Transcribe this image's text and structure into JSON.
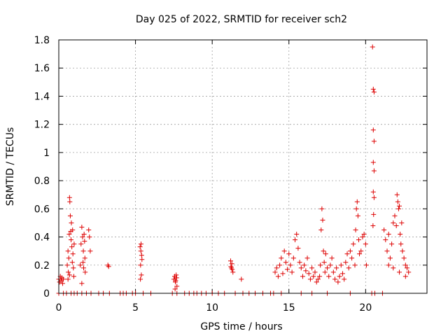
{
  "chart_data": {
    "type": "scatter",
    "title": "Day 025 of 2022, SRMTID for receiver sch2",
    "xlabel": "GPS time / hours",
    "ylabel": "SRMTID / TECUs",
    "xlim": [
      0,
      24
    ],
    "ylim": [
      0,
      1.8
    ],
    "xticks": [
      0,
      5,
      10,
      15,
      20
    ],
    "yticks": [
      0,
      0.2,
      0.4,
      0.6,
      0.8,
      1,
      1.2,
      1.4,
      1.6,
      1.8
    ],
    "ytick_labels": [
      "0",
      "0.2",
      "0.4",
      "0.6",
      "0.8",
      "1",
      "1.2",
      "1.4",
      "1.6",
      "1.8"
    ],
    "grid": true,
    "marker": "+",
    "marker_color": "#dd0000",
    "series": [
      {
        "name": "sch2",
        "points": [
          [
            0.0,
            0.1
          ],
          [
            0.05,
            0.08
          ],
          [
            0.1,
            0.12
          ],
          [
            0.15,
            0.09
          ],
          [
            0.2,
            0.11
          ],
          [
            0.25,
            0.07
          ],
          [
            0.3,
            0.1
          ],
          [
            0.0,
            0.0
          ],
          [
            0.3,
            0.0
          ],
          [
            0.5,
            0.0
          ],
          [
            0.55,
            0.2
          ],
          [
            0.6,
            0.3
          ],
          [
            0.62,
            0.15
          ],
          [
            0.65,
            0.25
          ],
          [
            0.68,
            0.42
          ],
          [
            0.7,
            0.68
          ],
          [
            0.72,
            0.65
          ],
          [
            0.75,
            0.55
          ],
          [
            0.78,
            0.44
          ],
          [
            0.8,
            0.38
          ],
          [
            0.82,
            0.5
          ],
          [
            0.85,
            0.33
          ],
          [
            0.88,
            0.22
          ],
          [
            0.9,
            0.45
          ],
          [
            0.92,
            0.28
          ],
          [
            0.95,
            0.18
          ],
          [
            0.98,
            0.12
          ],
          [
            1.0,
            0.35
          ],
          [
            0.6,
            0.1
          ],
          [
            0.7,
            0.13
          ],
          [
            0.8,
            0.0
          ],
          [
            1.0,
            0.0
          ],
          [
            1.2,
            0.0
          ],
          [
            1.4,
            0.2
          ],
          [
            1.45,
            0.35
          ],
          [
            1.5,
            0.47
          ],
          [
            1.55,
            0.4
          ],
          [
            1.6,
            0.3
          ],
          [
            1.62,
            0.18
          ],
          [
            1.65,
            0.42
          ],
          [
            1.7,
            0.25
          ],
          [
            1.72,
            0.15
          ],
          [
            1.5,
            0.07
          ],
          [
            1.58,
            0.22
          ],
          [
            1.68,
            0.37
          ],
          [
            1.95,
            0.45
          ],
          [
            2.0,
            0.4
          ],
          [
            2.05,
            0.3
          ],
          [
            1.5,
            0.0
          ],
          [
            1.8,
            0.0
          ],
          [
            2.1,
            0.0
          ],
          [
            3.2,
            0.2
          ],
          [
            3.25,
            0.19
          ],
          [
            2.6,
            0.0
          ],
          [
            2.9,
            0.0
          ],
          [
            3.3,
            0.0
          ],
          [
            4.0,
            0.0
          ],
          [
            4.2,
            0.0
          ],
          [
            4.4,
            0.0
          ],
          [
            4.8,
            0.0
          ],
          [
            5.0,
            0.0
          ],
          [
            5.3,
            0.33
          ],
          [
            5.35,
            0.3
          ],
          [
            5.4,
            0.27
          ],
          [
            5.33,
            0.2
          ],
          [
            5.38,
            0.13
          ],
          [
            5.32,
            0.1
          ],
          [
            5.42,
            0.24
          ],
          [
            5.36,
            0.35
          ],
          [
            5.5,
            0.0
          ],
          [
            6.0,
            0.0
          ],
          [
            7.5,
            0.1
          ],
          [
            7.55,
            0.12
          ],
          [
            7.6,
            0.08
          ],
          [
            7.65,
            0.13
          ],
          [
            7.7,
            0.05
          ],
          [
            7.58,
            0.03
          ],
          [
            7.62,
            0.09
          ],
          [
            7.68,
            0.11
          ],
          [
            7.4,
            0.0
          ],
          [
            7.7,
            0.0
          ],
          [
            8.2,
            0.0
          ],
          [
            8.5,
            0.0
          ],
          [
            8.8,
            0.0
          ],
          [
            9.0,
            0.0
          ],
          [
            9.3,
            0.0
          ],
          [
            9.6,
            0.0
          ],
          [
            10.0,
            0.0
          ],
          [
            10.4,
            0.0
          ],
          [
            10.8,
            0.0
          ],
          [
            11.2,
            0.23
          ],
          [
            11.25,
            0.18
          ],
          [
            11.3,
            0.17
          ],
          [
            11.28,
            0.21
          ],
          [
            11.35,
            0.15
          ],
          [
            11.22,
            0.19
          ],
          [
            11.9,
            0.1
          ],
          [
            11.5,
            0.0
          ],
          [
            12.0,
            0.0
          ],
          [
            12.4,
            0.0
          ],
          [
            12.8,
            0.0
          ],
          [
            13.3,
            0.0
          ],
          [
            13.8,
            0.0
          ],
          [
            14.0,
            0.0
          ],
          [
            14.1,
            0.15
          ],
          [
            14.2,
            0.18
          ],
          [
            14.3,
            0.12
          ],
          [
            14.4,
            0.2
          ],
          [
            14.5,
            0.25
          ],
          [
            14.6,
            0.14
          ],
          [
            14.7,
            0.3
          ],
          [
            14.8,
            0.22
          ],
          [
            14.9,
            0.17
          ],
          [
            15.0,
            0.28
          ],
          [
            15.1,
            0.2
          ],
          [
            15.2,
            0.15
          ],
          [
            15.3,
            0.25
          ],
          [
            15.4,
            0.38
          ],
          [
            15.5,
            0.42
          ],
          [
            15.6,
            0.32
          ],
          [
            15.7,
            0.22
          ],
          [
            15.8,
            0.18
          ],
          [
            15.9,
            0.12
          ],
          [
            16.0,
            0.2
          ],
          [
            16.1,
            0.16
          ],
          [
            16.2,
            0.25
          ],
          [
            16.3,
            0.14
          ],
          [
            16.4,
            0.1
          ],
          [
            16.5,
            0.18
          ],
          [
            16.6,
            0.12
          ],
          [
            16.7,
            0.15
          ],
          [
            16.8,
            0.08
          ],
          [
            16.9,
            0.1
          ],
          [
            17.0,
            0.12
          ],
          [
            17.05,
            0.2
          ],
          [
            17.1,
            0.45
          ],
          [
            17.15,
            0.6
          ],
          [
            17.2,
            0.52
          ],
          [
            17.25,
            0.3
          ],
          [
            17.3,
            0.22
          ],
          [
            17.35,
            0.15
          ],
          [
            17.4,
            0.28
          ],
          [
            17.5,
            0.18
          ],
          [
            17.6,
            0.12
          ],
          [
            17.7,
            0.2
          ],
          [
            17.8,
            0.25
          ],
          [
            17.9,
            0.15
          ],
          [
            18.0,
            0.1
          ],
          [
            18.1,
            0.18
          ],
          [
            18.2,
            0.08
          ],
          [
            18.3,
            0.12
          ],
          [
            18.4,
            0.2
          ],
          [
            18.5,
            0.14
          ],
          [
            18.6,
            0.1
          ],
          [
            18.7,
            0.22
          ],
          [
            18.8,
            0.28
          ],
          [
            18.9,
            0.18
          ],
          [
            19.0,
            0.3
          ],
          [
            19.1,
            0.25
          ],
          [
            19.2,
            0.35
          ],
          [
            19.3,
            0.2
          ],
          [
            19.35,
            0.45
          ],
          [
            19.4,
            0.6
          ],
          [
            19.45,
            0.65
          ],
          [
            19.5,
            0.55
          ],
          [
            19.55,
            0.38
          ],
          [
            19.6,
            0.28
          ],
          [
            19.7,
            0.3
          ],
          [
            19.8,
            0.4
          ],
          [
            19.9,
            0.42
          ],
          [
            20.0,
            0.35
          ],
          [
            20.05,
            0.2
          ],
          [
            14.5,
            0.0
          ],
          [
            15.8,
            0.0
          ],
          [
            16.5,
            0.0
          ],
          [
            17.5,
            0.0
          ],
          [
            19.0,
            0.0
          ],
          [
            20.45,
            1.75
          ],
          [
            20.5,
            1.45
          ],
          [
            20.55,
            1.43
          ],
          [
            20.5,
            1.16
          ],
          [
            20.55,
            1.08
          ],
          [
            20.5,
            0.93
          ],
          [
            20.55,
            0.87
          ],
          [
            20.5,
            0.72
          ],
          [
            20.55,
            0.68
          ],
          [
            20.52,
            0.56
          ],
          [
            20.48,
            0.48
          ],
          [
            20.4,
            0.0
          ],
          [
            20.6,
            0.0
          ],
          [
            21.1,
            0.0
          ],
          [
            21.2,
            0.45
          ],
          [
            21.3,
            0.38
          ],
          [
            21.4,
            0.3
          ],
          [
            21.5,
            0.42
          ],
          [
            21.6,
            0.25
          ],
          [
            21.7,
            0.35
          ],
          [
            21.8,
            0.5
          ],
          [
            21.9,
            0.55
          ],
          [
            22.0,
            0.48
          ],
          [
            22.05,
            0.7
          ],
          [
            22.1,
            0.65
          ],
          [
            22.15,
            0.6
          ],
          [
            22.2,
            0.62
          ],
          [
            22.25,
            0.42
          ],
          [
            22.3,
            0.35
          ],
          [
            22.35,
            0.5
          ],
          [
            22.4,
            0.3
          ],
          [
            22.5,
            0.25
          ],
          [
            22.6,
            0.2
          ],
          [
            22.7,
            0.18
          ],
          [
            22.8,
            0.15
          ],
          [
            21.5,
            0.2
          ],
          [
            21.8,
            0.18
          ],
          [
            22.2,
            0.15
          ],
          [
            22.6,
            0.12
          ]
        ]
      }
    ]
  }
}
